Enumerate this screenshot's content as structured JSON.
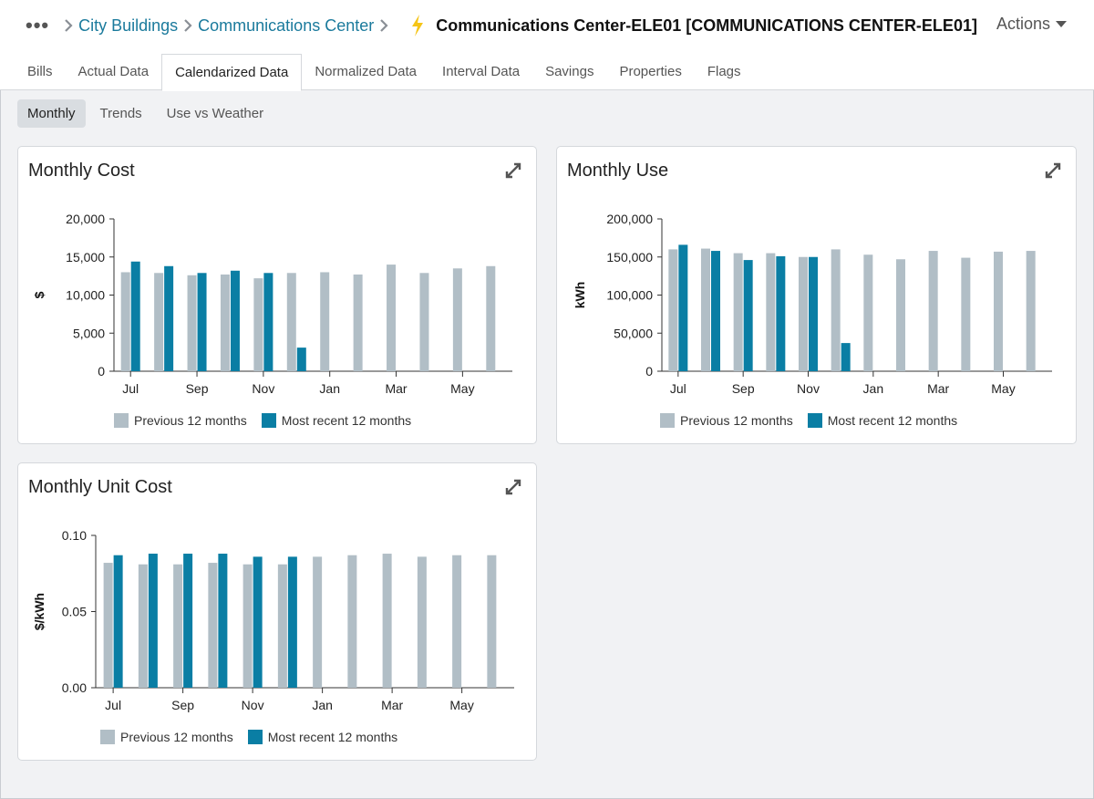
{
  "breadcrumb": {
    "root": "City Buildings",
    "parent": "Communications Center",
    "title": "Communications Center-ELE01 [COMMUNICATIONS CENTER-ELE01]"
  },
  "actions_label": "Actions",
  "tabs": [
    "Bills",
    "Actual Data",
    "Calendarized Data",
    "Normalized Data",
    "Interval Data",
    "Savings",
    "Properties",
    "Flags"
  ],
  "active_tab": "Calendarized Data",
  "subtabs": [
    "Monthly",
    "Trends",
    "Use vs Weather"
  ],
  "active_subtab": "Monthly",
  "colors": {
    "previous": "#b1bec6",
    "recent": "#0a7ea4",
    "link": "#1a7a9c",
    "bolt": "#f5c518"
  },
  "legend": {
    "previous": "Previous 12 months",
    "recent": "Most recent 12 months"
  },
  "chart_data": [
    {
      "id": "cost",
      "type": "bar",
      "title": "Monthly Cost",
      "ylabel": "$",
      "ylim": [
        0,
        20000
      ],
      "yticks": [
        "0",
        "5,000",
        "10,000",
        "15,000",
        "20,000"
      ],
      "xtick_labels": [
        "Jul",
        "Sep",
        "Nov",
        "Jan",
        "Mar",
        "May"
      ],
      "categories": [
        "Jul",
        "Aug",
        "Sep",
        "Oct",
        "Nov",
        "Dec",
        "Jan",
        "Feb",
        "Mar",
        "Apr",
        "May",
        "Jun"
      ],
      "series": [
        {
          "name": "Previous 12 months",
          "values": [
            13000,
            12900,
            12600,
            12700,
            12200,
            12900,
            13000,
            12700,
            14000,
            12900,
            13500,
            13800
          ]
        },
        {
          "name": "Most recent 12 months",
          "values": [
            14400,
            13800,
            12900,
            13200,
            12900,
            3100,
            null,
            null,
            null,
            null,
            null,
            null
          ]
        }
      ],
      "legend": "bottom"
    },
    {
      "id": "use",
      "type": "bar",
      "title": "Monthly Use",
      "ylabel": "kWh",
      "ylim": [
        0,
        200000
      ],
      "yticks": [
        "0",
        "50,000",
        "100,000",
        "150,000",
        "200,000"
      ],
      "xtick_labels": [
        "Jul",
        "Sep",
        "Nov",
        "Jan",
        "Mar",
        "May"
      ],
      "categories": [
        "Jul",
        "Aug",
        "Sep",
        "Oct",
        "Nov",
        "Dec",
        "Jan",
        "Feb",
        "Mar",
        "Apr",
        "May",
        "Jun"
      ],
      "series": [
        {
          "name": "Previous 12 months",
          "values": [
            160000,
            161000,
            155000,
            155000,
            150000,
            160000,
            153000,
            147000,
            158000,
            149000,
            157000,
            158000
          ]
        },
        {
          "name": "Most recent 12 months",
          "values": [
            166000,
            158000,
            146000,
            151000,
            150000,
            37000,
            null,
            null,
            null,
            null,
            null,
            null
          ]
        }
      ],
      "legend": "bottom"
    },
    {
      "id": "unit",
      "type": "bar",
      "title": "Monthly Unit Cost",
      "ylabel": "$/kWh",
      "ylim": [
        0,
        0.1
      ],
      "yticks": [
        "0.00",
        "0.05",
        "0.10"
      ],
      "xtick_labels": [
        "Jul",
        "Sep",
        "Nov",
        "Jan",
        "Mar",
        "May"
      ],
      "categories": [
        "Jul",
        "Aug",
        "Sep",
        "Oct",
        "Nov",
        "Dec",
        "Jan",
        "Feb",
        "Mar",
        "Apr",
        "May",
        "Jun"
      ],
      "series": [
        {
          "name": "Previous 12 months",
          "values": [
            0.082,
            0.081,
            0.081,
            0.082,
            0.081,
            0.081,
            0.086,
            0.087,
            0.088,
            0.086,
            0.087,
            0.087
          ]
        },
        {
          "name": "Most recent 12 months",
          "values": [
            0.087,
            0.088,
            0.088,
            0.088,
            0.086,
            0.086,
            null,
            null,
            null,
            null,
            null,
            null
          ]
        }
      ],
      "legend": "bottom"
    }
  ]
}
